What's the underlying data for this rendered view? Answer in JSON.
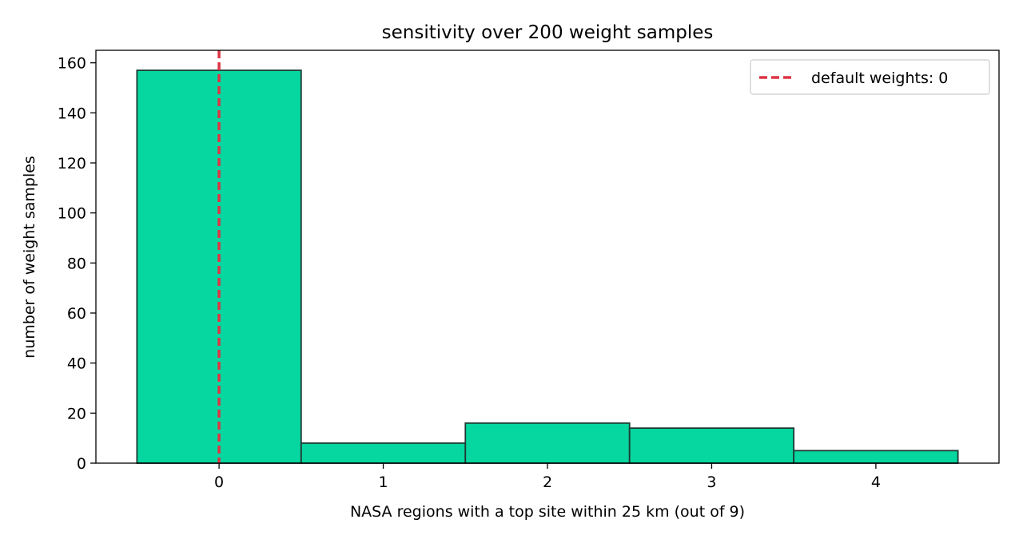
{
  "chart_data": {
    "type": "bar",
    "title": "sensitivity over 200 weight samples",
    "xlabel": "NASA regions with a top site within 25 km (out of 9)",
    "ylabel": "number of weight samples",
    "categories": [
      0,
      1,
      2,
      3,
      4
    ],
    "values": [
      157,
      8,
      16,
      14,
      5
    ],
    "xlim": [
      -0.75,
      4.75
    ],
    "ylim": [
      0,
      165
    ],
    "xticks": [
      "0",
      "1",
      "2",
      "3",
      "4"
    ],
    "yticks": [
      "0",
      "20",
      "40",
      "60",
      "80",
      "100",
      "120",
      "140",
      "160"
    ],
    "grid": false,
    "legend_position": "top-right",
    "reference_line": {
      "x": 0,
      "label": "default weights: 0",
      "color": "#dc3545",
      "style": "dashed"
    },
    "bar_color": "#06d6a0",
    "bar_edge_color": "#1f3b33"
  }
}
